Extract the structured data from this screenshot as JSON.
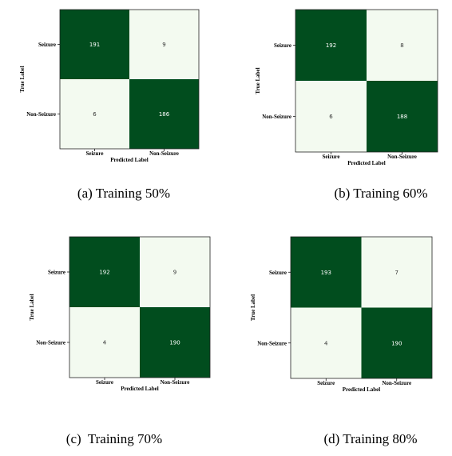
{
  "colors": {
    "dark": "#014d1e",
    "light": "#f3faf0",
    "border": "#222222"
  },
  "chart_data": [
    {
      "type": "heatmap",
      "caption": "(a) Training 50%",
      "xlabel": "Predicted Label",
      "ylabel": "True Label",
      "x_categories": [
        "Seizure",
        "Non-Seizure"
      ],
      "y_categories": [
        "Seizure",
        "Non-Seizure"
      ],
      "values": [
        [
          191,
          9
        ],
        [
          6,
          186
        ]
      ]
    },
    {
      "type": "heatmap",
      "caption": "(b) Training 60%",
      "xlabel": "Predicted Label",
      "ylabel": "True Label",
      "x_categories": [
        "Seizure",
        "Non-Seizure"
      ],
      "y_categories": [
        "Seizure",
        "Non-Seizure"
      ],
      "values": [
        [
          192,
          8
        ],
        [
          6,
          188
        ]
      ]
    },
    {
      "type": "heatmap",
      "caption": "(c)  Training 70%",
      "xlabel": "Predicted Label",
      "ylabel": "True Label",
      "x_categories": [
        "Seizure",
        "Non-Seizure"
      ],
      "y_categories": [
        "Seizure",
        "Non-Seizure"
      ],
      "values": [
        [
          192,
          9
        ],
        [
          4,
          190
        ]
      ]
    },
    {
      "type": "heatmap",
      "caption": "(d) Training 80%",
      "xlabel": "Predicted Label",
      "ylabel": "True Label",
      "x_categories": [
        "Seizure",
        "Non-Seizure"
      ],
      "y_categories": [
        "Seizure",
        "Non-Seizure"
      ],
      "values": [
        [
          193,
          7
        ],
        [
          4,
          190
        ]
      ]
    }
  ]
}
